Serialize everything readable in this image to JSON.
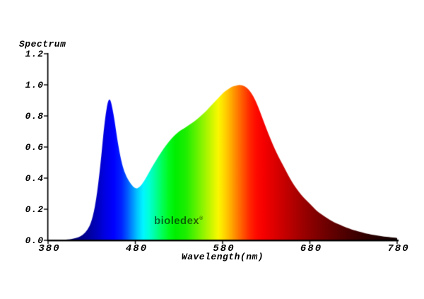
{
  "watermark": {
    "text": "bioledex",
    "mark": "®",
    "color": "rgba(0,0,0,0.58)"
  },
  "chart_data": {
    "type": "area",
    "title": "Spectrum",
    "ylabel": "Spectrum",
    "xlabel": "Wavelength(nm)",
    "xlim": [
      380,
      780
    ],
    "ylim": [
      0,
      1.2
    ],
    "grid": false,
    "legend": "none",
    "axis_color": "#000000",
    "background_color": "#ffffff",
    "x_ticks": {
      "values": [
        380,
        480,
        580,
        680,
        780
      ],
      "labels": [
        "380",
        "480",
        "580",
        "680",
        "780"
      ]
    },
    "y_ticks": {
      "values": [
        0.0,
        0.2,
        0.4,
        0.6,
        0.8,
        1.0,
        1.2
      ],
      "labels": [
        "0.0",
        "0.2",
        "0.4",
        "0.6",
        "0.8",
        "1.0",
        "1.2"
      ]
    },
    "features": {
      "blue_peak": {
        "nm": 450,
        "value": 0.94
      },
      "dip": {
        "nm": 480,
        "value": 0.33
      },
      "green_shoulder": {
        "nm": 530,
        "value": 0.7
      },
      "main_peak": {
        "nm": 600,
        "value": 1.0
      }
    },
    "x": [
      380,
      385,
      390,
      395,
      400,
      405,
      410,
      415,
      420,
      425,
      430,
      435,
      440,
      445,
      450,
      455,
      460,
      465,
      470,
      475,
      480,
      485,
      490,
      495,
      500,
      505,
      510,
      515,
      520,
      525,
      530,
      535,
      540,
      545,
      550,
      555,
      560,
      565,
      570,
      575,
      580,
      585,
      590,
      595,
      600,
      605,
      610,
      615,
      620,
      625,
      630,
      635,
      640,
      645,
      650,
      655,
      660,
      665,
      670,
      675,
      680,
      685,
      690,
      695,
      700,
      705,
      710,
      715,
      720,
      725,
      730,
      735,
      740,
      745,
      750,
      755,
      760,
      765,
      770,
      775,
      780
    ],
    "y": [
      0.0,
      0.0,
      0.001,
      0.002,
      0.004,
      0.007,
      0.012,
      0.02,
      0.035,
      0.065,
      0.12,
      0.25,
      0.48,
      0.78,
      0.94,
      0.82,
      0.62,
      0.48,
      0.405,
      0.36,
      0.33,
      0.34,
      0.38,
      0.43,
      0.48,
      0.525,
      0.57,
      0.61,
      0.645,
      0.675,
      0.7,
      0.718,
      0.735,
      0.755,
      0.775,
      0.8,
      0.825,
      0.855,
      0.885,
      0.915,
      0.945,
      0.968,
      0.985,
      0.996,
      1.0,
      0.993,
      0.97,
      0.93,
      0.87,
      0.795,
      0.72,
      0.65,
      0.585,
      0.527,
      0.475,
      0.42,
      0.37,
      0.33,
      0.292,
      0.262,
      0.235,
      0.205,
      0.18,
      0.16,
      0.142,
      0.125,
      0.11,
      0.098,
      0.086,
      0.076,
      0.066,
      0.058,
      0.05,
      0.044,
      0.038,
      0.033,
      0.028,
      0.024,
      0.021,
      0.018,
      0.015
    ],
    "spectral_gradient_stops": [
      {
        "nm": 380,
        "color": "#000050"
      },
      {
        "nm": 400,
        "color": "#000060"
      },
      {
        "nm": 412,
        "color": "#000078"
      },
      {
        "nm": 424,
        "color": "#000096"
      },
      {
        "nm": 436,
        "color": "#0000BE"
      },
      {
        "nm": 446,
        "color": "#0000E6"
      },
      {
        "nm": 455,
        "color": "#0000FF"
      },
      {
        "nm": 464,
        "color": "#0022FF"
      },
      {
        "nm": 471,
        "color": "#005AFF"
      },
      {
        "nm": 477,
        "color": "#0096FF"
      },
      {
        "nm": 483,
        "color": "#00CCFF"
      },
      {
        "nm": 489,
        "color": "#00F6FF"
      },
      {
        "nm": 495,
        "color": "#00FFDC"
      },
      {
        "nm": 503,
        "color": "#00FF9B"
      },
      {
        "nm": 511,
        "color": "#00FF55"
      },
      {
        "nm": 519,
        "color": "#00FA19"
      },
      {
        "nm": 526,
        "color": "#00EE00"
      },
      {
        "nm": 538,
        "color": "#1EEE00"
      },
      {
        "nm": 548,
        "color": "#55F200"
      },
      {
        "nm": 557,
        "color": "#8CF400"
      },
      {
        "nm": 566,
        "color": "#C3F600"
      },
      {
        "nm": 575,
        "color": "#FAF800"
      },
      {
        "nm": 581,
        "color": "#FFDC00"
      },
      {
        "nm": 587,
        "color": "#FFBB00"
      },
      {
        "nm": 593,
        "color": "#FF9600"
      },
      {
        "nm": 599,
        "color": "#FF7000"
      },
      {
        "nm": 605,
        "color": "#FF4B00"
      },
      {
        "nm": 611,
        "color": "#FF2800"
      },
      {
        "nm": 618,
        "color": "#FF0C00"
      },
      {
        "nm": 627,
        "color": "#F60000"
      },
      {
        "nm": 640,
        "color": "#DC0000"
      },
      {
        "nm": 655,
        "color": "#BE0000"
      },
      {
        "nm": 670,
        "color": "#A00000"
      },
      {
        "nm": 685,
        "color": "#850000"
      },
      {
        "nm": 700,
        "color": "#6C0000"
      },
      {
        "nm": 715,
        "color": "#560000"
      },
      {
        "nm": 730,
        "color": "#420000"
      },
      {
        "nm": 745,
        "color": "#300000"
      },
      {
        "nm": 760,
        "color": "#220000"
      },
      {
        "nm": 770,
        "color": "#190000"
      },
      {
        "nm": 780,
        "color": "#130000"
      }
    ]
  }
}
